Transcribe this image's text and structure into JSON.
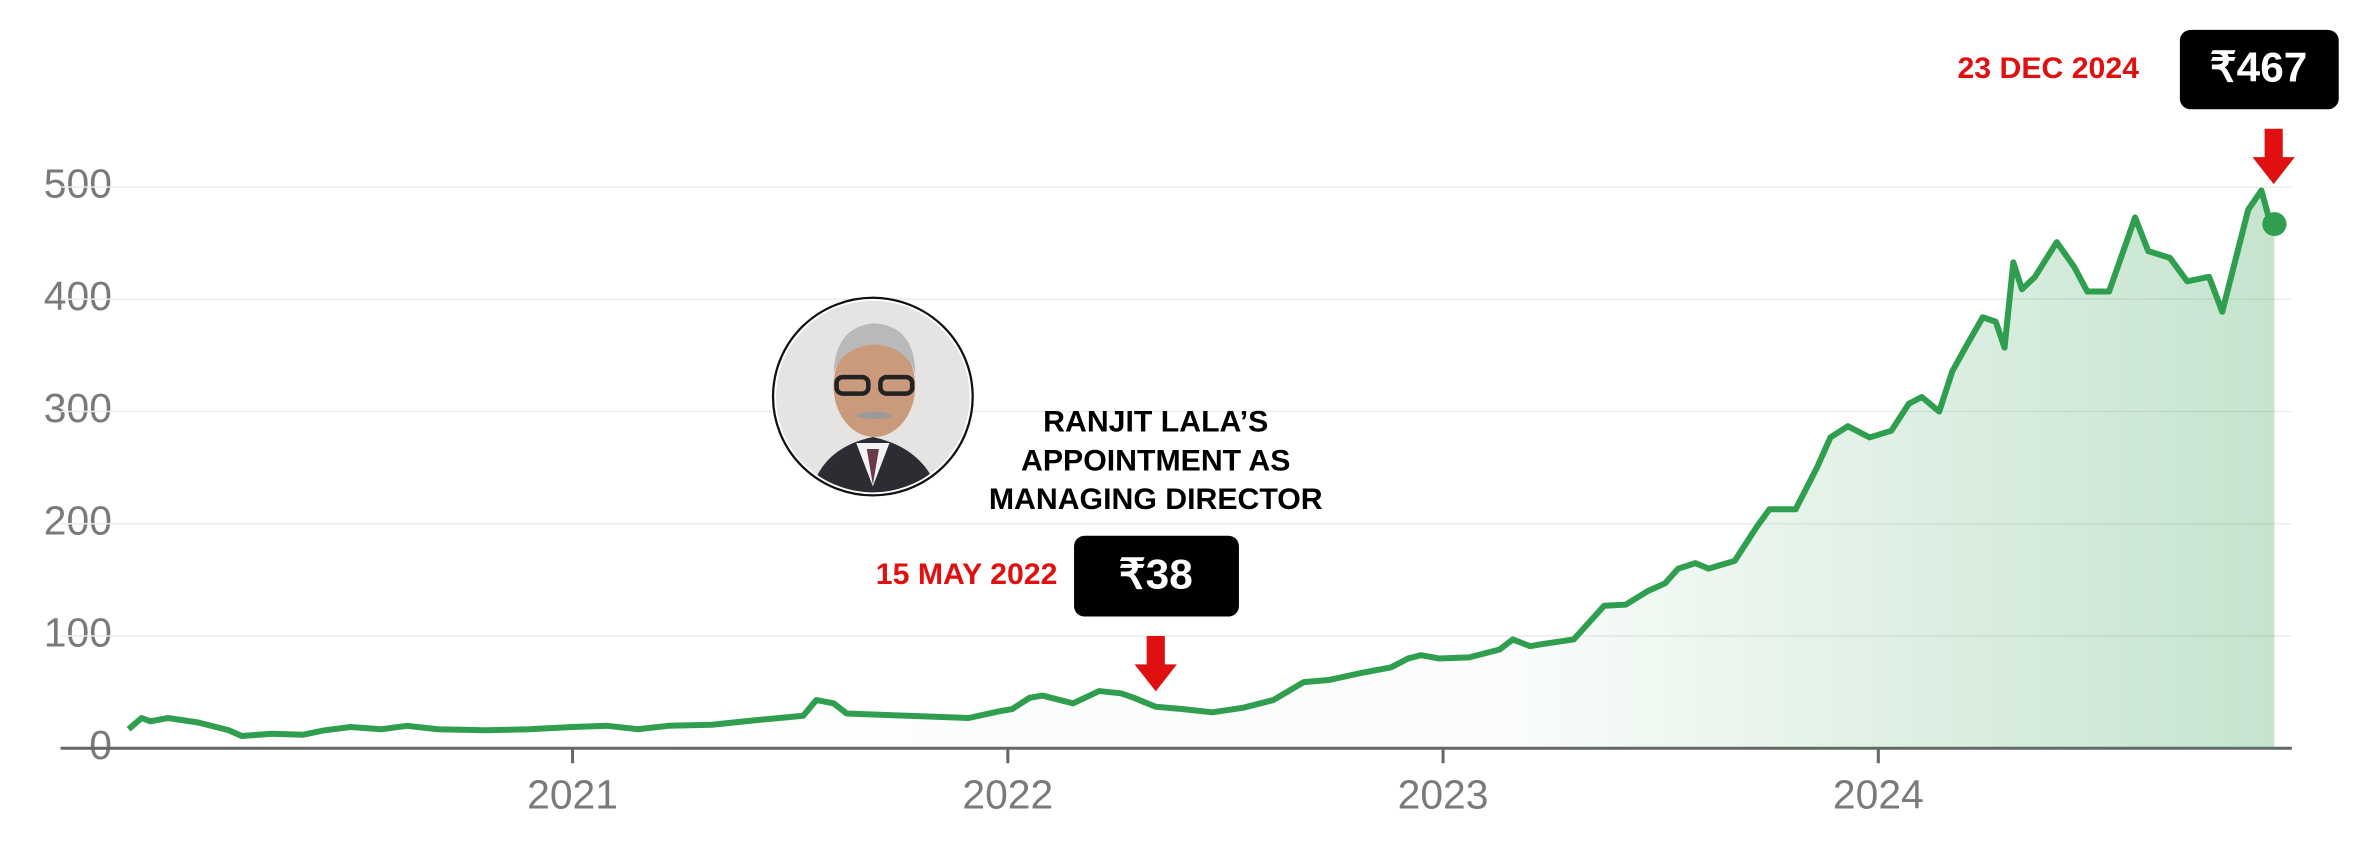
{
  "chart_data": {
    "type": "line",
    "x": [
      2019.98,
      2020.01,
      2020.03,
      2020.07,
      2020.14,
      2020.21,
      2020.24,
      2020.31,
      2020.38,
      2020.43,
      2020.49,
      2020.56,
      2020.62,
      2020.69,
      2020.8,
      2020.9,
      2021.0,
      2021.08,
      2021.15,
      2021.22,
      2021.32,
      2021.42,
      2021.53,
      2021.56,
      2021.6,
      2021.63,
      2021.77,
      2021.91,
      2021.98,
      2022.01,
      2022.05,
      2022.08,
      2022.12,
      2022.15,
      2022.21,
      2022.26,
      2022.29,
      2022.34,
      2022.4,
      2022.47,
      2022.54,
      2022.61,
      2022.68,
      2022.74,
      2022.81,
      2022.88,
      2022.92,
      2022.95,
      2022.99,
      2023.06,
      2023.13,
      2023.16,
      2023.2,
      2023.23,
      2023.3,
      2023.37,
      2023.42,
      2023.47,
      2023.51,
      2023.54,
      2023.58,
      2023.61,
      2023.67,
      2023.72,
      2023.75,
      2023.81,
      2023.86,
      2023.89,
      2023.93,
      2023.98,
      2024.03,
      2024.07,
      2024.1,
      2024.14,
      2024.17,
      2024.2,
      2024.24,
      2024.27,
      2024.29,
      2024.31,
      2024.33,
      2024.36,
      2024.41,
      2024.45,
      2024.48,
      2024.53,
      2024.59,
      2024.62,
      2024.67,
      2024.71,
      2024.76,
      2024.79,
      2024.85,
      2024.88,
      2024.9,
      2024.91
    ],
    "series": [
      {
        "color": "#2f9e4f",
        "values": [
          17,
          27,
          24,
          27,
          23,
          16,
          11,
          13,
          12,
          16,
          19,
          17,
          20,
          17,
          16,
          17,
          19,
          20,
          17,
          20,
          21,
          25,
          29,
          43,
          40,
          31,
          29,
          27,
          33,
          35,
          45,
          47,
          43,
          40,
          51,
          49,
          45,
          37,
          35,
          32,
          36,
          43,
          59,
          61,
          67,
          72,
          80,
          83,
          80,
          81,
          88,
          97,
          91,
          93,
          97,
          127,
          128,
          140,
          147,
          160,
          165,
          160,
          167,
          197,
          213,
          213,
          251,
          277,
          287,
          277,
          283,
          307,
          313,
          300,
          336,
          357,
          384,
          380,
          357,
          433,
          409,
          420,
          451,
          429,
          407,
          407,
          473,
          443,
          437,
          416,
          420,
          389,
          480,
          497,
          469,
          467
        ]
      }
    ],
    "xlim": [
      2019.98,
      2024.95
    ],
    "ylim": [
      0,
      500
    ],
    "xticks": [
      2021,
      2022,
      2023,
      2024
    ],
    "yticks": [
      0,
      100,
      200,
      300,
      400,
      500
    ],
    "grid": true,
    "annotations": [
      {
        "date": "15 MAY 2022",
        "price": "₹38"
      },
      {
        "date": "23 DEC 2024",
        "price": "₹467"
      }
    ],
    "note": [
      "RANJIT LALA’S",
      "APPOINTMENT AS",
      "MANAGING DIRECTOR"
    ]
  }
}
